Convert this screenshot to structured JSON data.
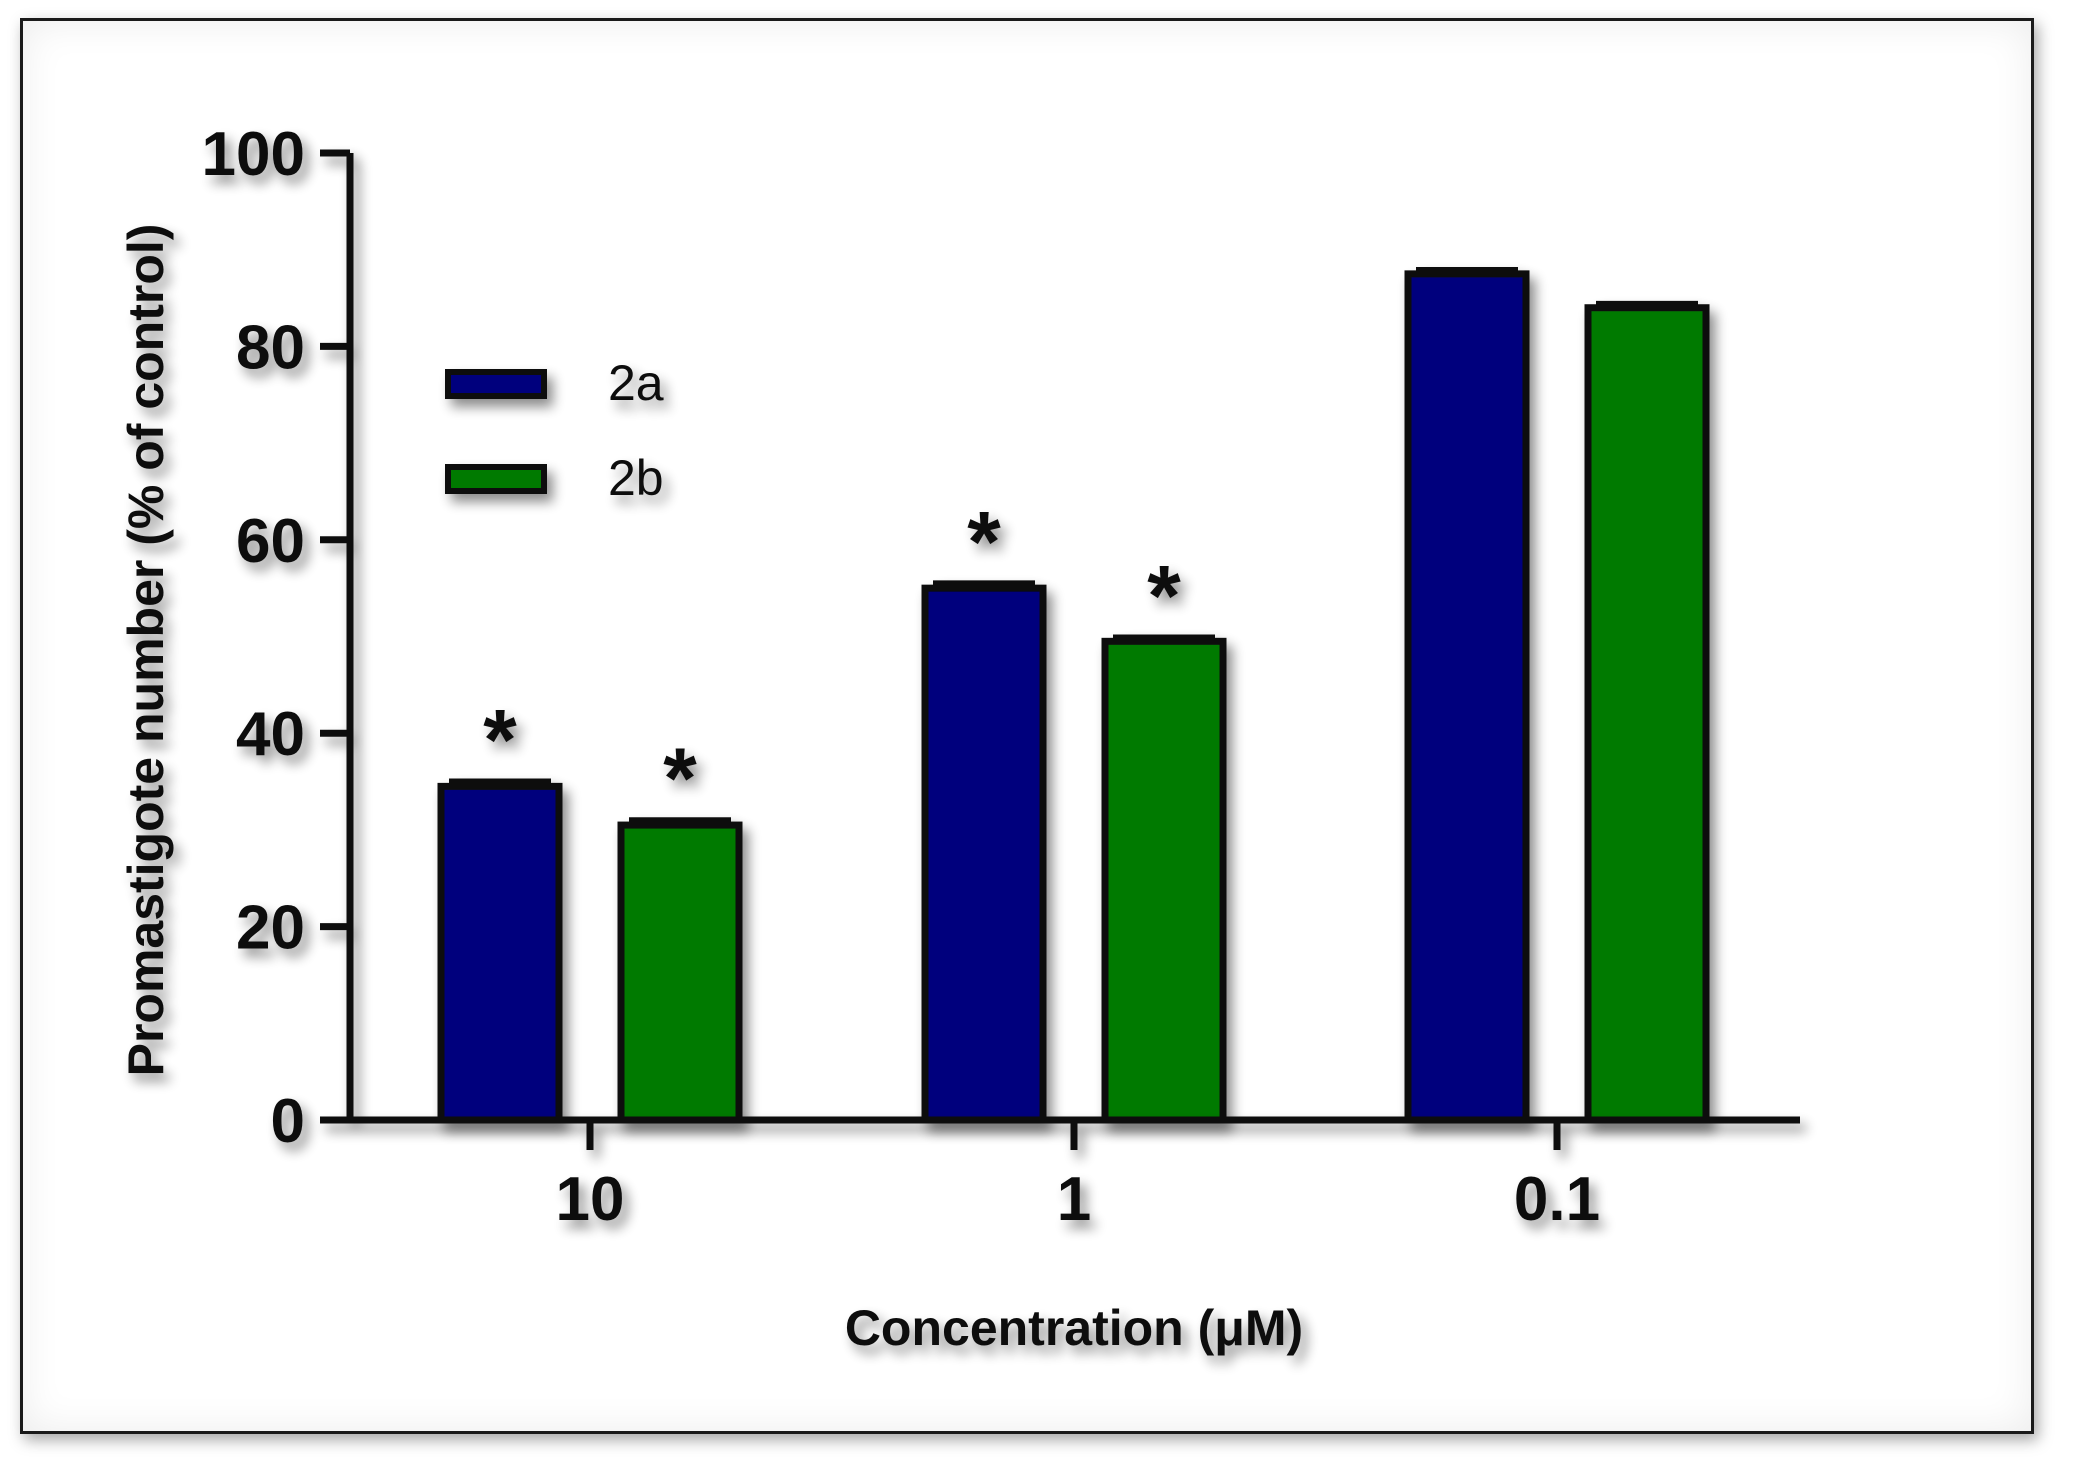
{
  "chart_data": {
    "type": "bar",
    "categories": [
      "10",
      "1",
      "0.1"
    ],
    "series": [
      {
        "name": "2a",
        "color": "#00007d",
        "values": [
          34.5,
          55,
          87.5
        ],
        "errors": [
          0.5,
          0.5,
          0.4
        ],
        "significant": [
          true,
          true,
          false
        ]
      },
      {
        "name": "2b",
        "color": "#007a00",
        "values": [
          30.5,
          49.5,
          84
        ],
        "errors": [
          0.5,
          0.4,
          0.4
        ],
        "significant": [
          true,
          true,
          false
        ]
      }
    ],
    "xlabel": "Concentration (μM)",
    "ylabel": "Promastigote number (% of control)",
    "ylim": [
      0,
      100
    ],
    "yticks": [
      0,
      20,
      40,
      60,
      80,
      100
    ],
    "significance_marker": "*",
    "legend_position": "top-left",
    "grid": false
  }
}
